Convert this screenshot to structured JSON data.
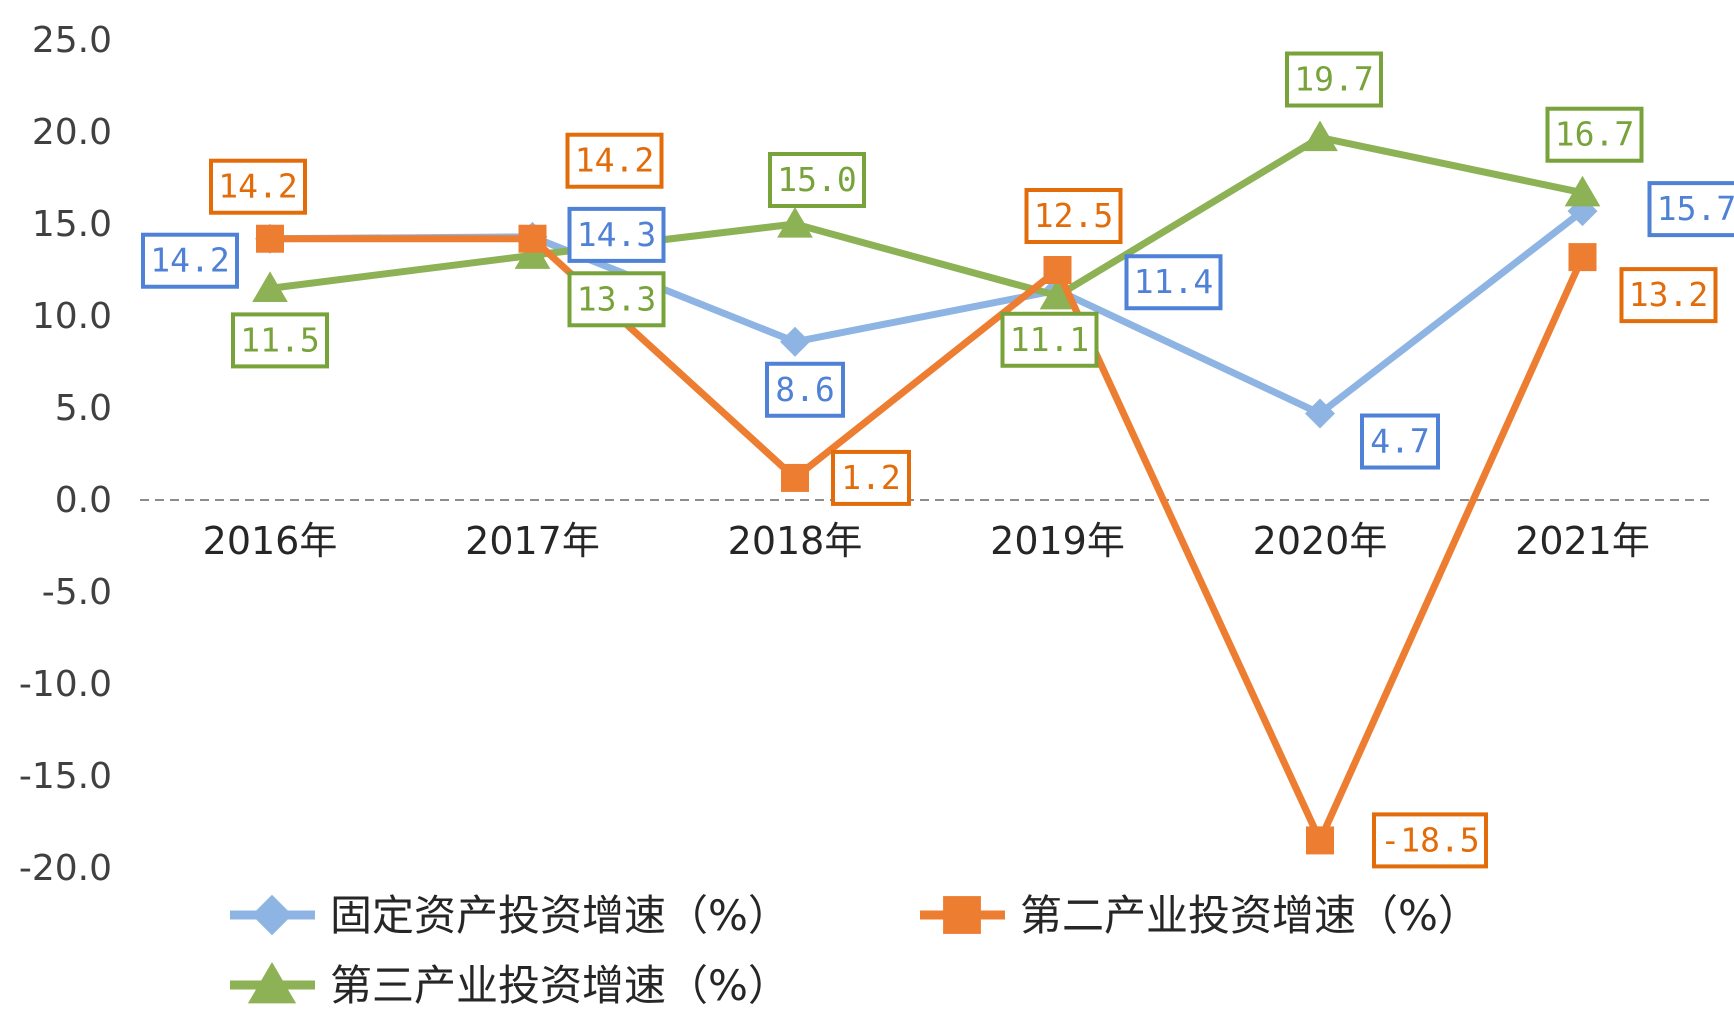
{
  "chart_data": {
    "type": "line",
    "categories": [
      "2016年",
      "2017年",
      "2018年",
      "2019年",
      "2020年",
      "2021年"
    ],
    "ylim": [
      -20,
      25
    ],
    "yticks": [
      "25.0",
      "20.0",
      "15.0",
      "10.0",
      "5.0",
      "0.0",
      "-5.0",
      "-10.0",
      "-15.0",
      "-20.0"
    ],
    "grid": false,
    "zero_line": "dashed",
    "legend_position": "bottom",
    "series": [
      {
        "name": "固定资产投资增速（%）",
        "color": "#8EB4E3",
        "label_color": "#4F81D6",
        "marker": "diamond",
        "values": [
          14.2,
          14.3,
          8.6,
          11.4,
          4.7,
          15.7
        ],
        "labels": [
          "14.2",
          "14.3",
          "8.6",
          "11.4",
          "4.7",
          "15.7"
        ]
      },
      {
        "name": "第二产业投资增速（%）",
        "color": "#ED7D31",
        "label_color": "#E36C0A",
        "marker": "square",
        "values": [
          14.2,
          14.2,
          1.2,
          12.5,
          -18.5,
          13.2
        ],
        "labels": [
          "14.2",
          "14.2",
          "1.2",
          "12.5",
          "-18.5",
          "13.2"
        ]
      },
      {
        "name": "第三产业投资增速（%）",
        "color": "#8DB255",
        "label_color": "#77A33A",
        "marker": "triangle",
        "values": [
          11.5,
          13.3,
          15.0,
          11.1,
          19.7,
          16.7
        ],
        "labels": [
          "11.5",
          "13.3",
          "15.0",
          "11.1",
          "19.7",
          "16.7"
        ]
      }
    ]
  }
}
